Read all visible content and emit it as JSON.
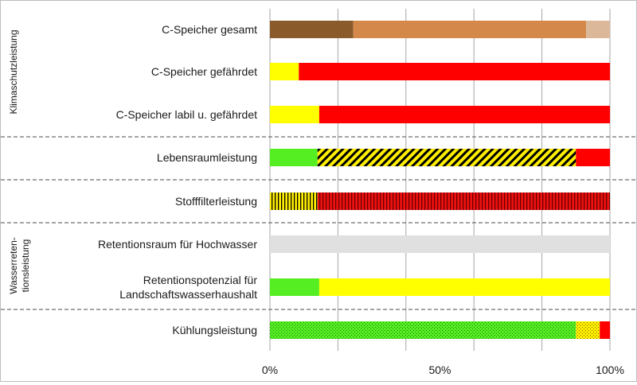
{
  "chart_data": {
    "type": "bar",
    "orientation": "horizontal",
    "stacked": true,
    "xlim": [
      0,
      100
    ],
    "x_ticks": [
      "0%",
      "50%",
      "100%"
    ],
    "grid": "vertical",
    "groups": [
      {
        "label": "Klimaschutzleistung",
        "rows": [
          0,
          1,
          2
        ]
      },
      {
        "label": "",
        "rows": [
          3
        ]
      },
      {
        "label": "",
        "rows": [
          4
        ]
      },
      {
        "label": "Wasserreten-\ntionsleistung",
        "rows": [
          5,
          6
        ]
      },
      {
        "label": "",
        "rows": [
          7
        ]
      }
    ],
    "rows": [
      {
        "label": "C-Speicher gesamt",
        "segments": [
          {
            "value": 24.5,
            "color": "#8b5a2b",
            "pattern": "none"
          },
          {
            "value": 68.5,
            "color": "#d4894a",
            "pattern": "none"
          },
          {
            "value": 7,
            "color": "#dcb89a",
            "pattern": "none"
          }
        ]
      },
      {
        "label": "C-Speicher gefährdet",
        "segments": [
          {
            "value": 8.5,
            "color": "#ffff00",
            "pattern": "none"
          },
          {
            "value": 91.5,
            "color": "#ff0000",
            "pattern": "none"
          }
        ]
      },
      {
        "label": "C-Speicher labil u. gefährdet",
        "segments": [
          {
            "value": 14.5,
            "color": "#ffff00",
            "pattern": "none"
          },
          {
            "value": 85.5,
            "color": "#ff0000",
            "pattern": "none"
          }
        ]
      },
      {
        "label": "Lebensraumleistung",
        "segments": [
          {
            "value": 14,
            "color": "#55ee22",
            "pattern": "none"
          },
          {
            "value": 76,
            "color": "#ffee00",
            "pattern": "diagonal"
          },
          {
            "value": 10,
            "color": "#ff0000",
            "pattern": "none"
          }
        ]
      },
      {
        "label": "Stofffilterleistung",
        "segments": [
          {
            "value": 14,
            "color": "#ffee00",
            "pattern": "vertical"
          },
          {
            "value": 86,
            "color": "#ee1111",
            "pattern": "vertical"
          }
        ]
      },
      {
        "label": "Retentionsraum für Hochwasser",
        "segments": [
          {
            "value": 100,
            "color": "#e0e0e0",
            "pattern": "none"
          }
        ]
      },
      {
        "label": "Retentionspotenzial für\nLandschaftswasserhaushalt",
        "segments": [
          {
            "value": 14.5,
            "color": "#55ee22",
            "pattern": "none"
          },
          {
            "value": 85.5,
            "color": "#ffff00",
            "pattern": "none"
          }
        ]
      },
      {
        "label": "Kühlungsleistung",
        "segments": [
          {
            "value": 90,
            "color": "#55ee22",
            "pattern": "dots"
          },
          {
            "value": 7,
            "color": "#ffee00",
            "pattern": "dots"
          },
          {
            "value": 3,
            "color": "#ff0000",
            "pattern": "none"
          }
        ]
      }
    ]
  }
}
